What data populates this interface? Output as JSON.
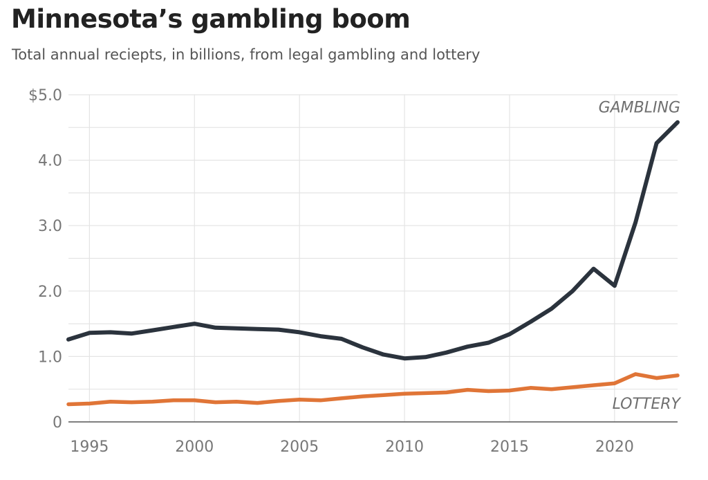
{
  "chart_data": {
    "type": "line",
    "title": "Minnesota’s gambling boom",
    "subtitle": "Total annual reciepts, in billions, from legal gambling and lottery",
    "x": [
      1994,
      1995,
      1996,
      1997,
      1998,
      1999,
      2000,
      2001,
      2002,
      2003,
      2004,
      2005,
      2006,
      2007,
      2008,
      2009,
      2010,
      2011,
      2012,
      2013,
      2014,
      2015,
      2016,
      2017,
      2018,
      2019,
      2020,
      2021,
      2022,
      2023
    ],
    "series": [
      {
        "name": "GAMBLING",
        "color": "#2b333d",
        "values": [
          1.26,
          1.36,
          1.37,
          1.35,
          1.4,
          1.45,
          1.5,
          1.44,
          1.43,
          1.42,
          1.41,
          1.37,
          1.31,
          1.27,
          1.14,
          1.03,
          0.97,
          0.99,
          1.06,
          1.15,
          1.21,
          1.34,
          1.53,
          1.73,
          2.0,
          2.34,
          2.08,
          3.05,
          4.26,
          4.58
        ]
      },
      {
        "name": "LOTTERY",
        "color": "#e07537",
        "values": [
          0.27,
          0.28,
          0.31,
          0.3,
          0.31,
          0.33,
          0.33,
          0.3,
          0.31,
          0.29,
          0.32,
          0.34,
          0.33,
          0.36,
          0.39,
          0.41,
          0.43,
          0.44,
          0.45,
          0.49,
          0.47,
          0.48,
          0.52,
          0.5,
          0.53,
          0.56,
          0.59,
          0.73,
          0.67,
          0.71
        ]
      }
    ],
    "xticks": [
      1995,
      2000,
      2005,
      2010,
      2015,
      2020
    ],
    "xtick_labels": [
      "1995",
      "2000",
      "2005",
      "2010",
      "2015",
      "2020"
    ],
    "yticks": [
      0,
      1,
      2,
      3,
      4,
      5
    ],
    "ytick_labels": [
      "0",
      "1.0",
      "2.0",
      "3.0",
      "4.0",
      "$5.0"
    ],
    "xlim": [
      1994,
      2023
    ],
    "ylim": [
      0,
      5
    ],
    "xlabel": "",
    "ylabel": "",
    "grid": true,
    "colors": {
      "grid": "#e4e4e4",
      "axis": "#555555",
      "ticks": "#777777"
    }
  }
}
